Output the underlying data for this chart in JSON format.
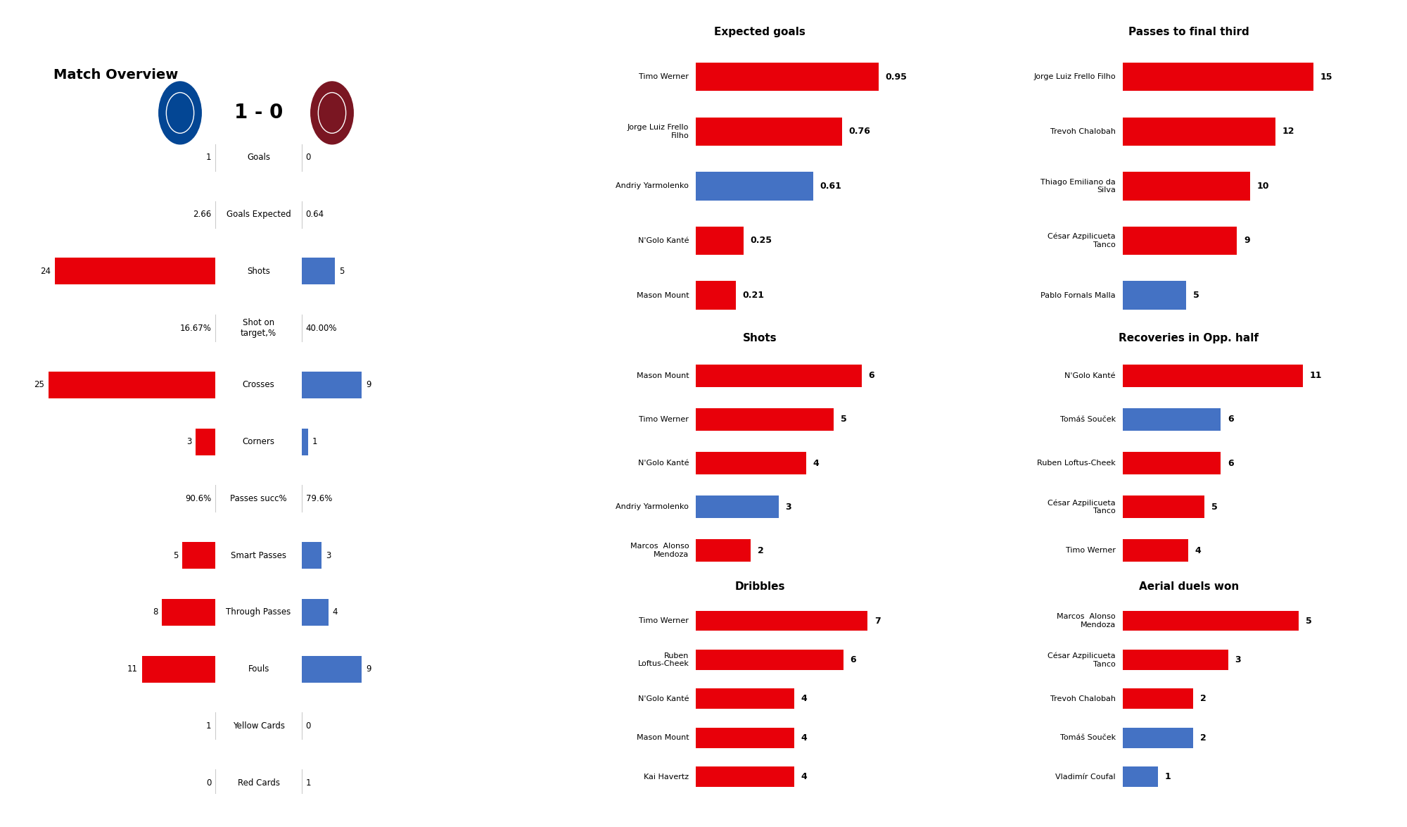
{
  "title": "Match Overview",
  "score": "1 - 0",
  "chelsea_color": "#e8000a",
  "westham_color": "#4472c4",
  "overview_stats": [
    {
      "label": "Goals",
      "chelsea_val": "1",
      "westham_val": "0",
      "chelsea_num": 1,
      "westham_num": 0,
      "type": "number"
    },
    {
      "label": "Goals Expected",
      "chelsea_val": "2.66",
      "westham_val": "0.64",
      "chelsea_num": 2.66,
      "westham_num": 0.64,
      "type": "number"
    },
    {
      "label": "Shots",
      "chelsea_val": "24",
      "westham_val": "5",
      "chelsea_num": 24,
      "westham_num": 5,
      "type": "bar"
    },
    {
      "label": "Shot on\ntarget,%",
      "chelsea_val": "16.67%",
      "westham_val": "40.00%",
      "chelsea_num": 0,
      "westham_num": 0,
      "type": "percent"
    },
    {
      "label": "Crosses",
      "chelsea_val": "25",
      "westham_val": "9",
      "chelsea_num": 25,
      "westham_num": 9,
      "type": "bar"
    },
    {
      "label": "Corners",
      "chelsea_val": "3",
      "westham_val": "1",
      "chelsea_num": 3,
      "westham_num": 1,
      "type": "bar"
    },
    {
      "label": "Passes succ%",
      "chelsea_val": "90.6%",
      "westham_val": "79.6%",
      "chelsea_num": 0,
      "westham_num": 0,
      "type": "percent"
    },
    {
      "label": "Smart Passes",
      "chelsea_val": "5",
      "westham_val": "3",
      "chelsea_num": 5,
      "westham_num": 3,
      "type": "bar"
    },
    {
      "label": "Through Passes",
      "chelsea_val": "8",
      "westham_val": "4",
      "chelsea_num": 8,
      "westham_num": 4,
      "type": "bar"
    },
    {
      "label": "Fouls",
      "chelsea_val": "11",
      "westham_val": "9",
      "chelsea_num": 11,
      "westham_num": 9,
      "type": "bar"
    },
    {
      "label": "Yellow Cards",
      "chelsea_val": "1",
      "westham_val": "0",
      "chelsea_num": 1,
      "westham_num": 0,
      "type": "number"
    },
    {
      "label": "Red Cards",
      "chelsea_val": "0",
      "westham_val": "1",
      "chelsea_num": 0,
      "westham_num": 1,
      "type": "number"
    }
  ],
  "expected_goals": {
    "title": "Expected goals",
    "players": [
      "Timo Werner",
      "Jorge Luiz Frello\nFilho",
      "Andriy Yarmolenko",
      "N'Golo Kanté",
      "Mason Mount"
    ],
    "values": [
      0.95,
      0.76,
      0.61,
      0.25,
      0.21
    ],
    "colors": [
      "#e8000a",
      "#e8000a",
      "#4472c4",
      "#e8000a",
      "#e8000a"
    ]
  },
  "shots": {
    "title": "Shots",
    "players": [
      "Mason Mount",
      "Timo Werner",
      "N'Golo Kanté",
      "Andriy Yarmolenko",
      "Marcos  Alonso\nMendoza"
    ],
    "values": [
      6,
      5,
      4,
      3,
      2
    ],
    "colors": [
      "#e8000a",
      "#e8000a",
      "#e8000a",
      "#4472c4",
      "#e8000a"
    ]
  },
  "dribbles": {
    "title": "Dribbles",
    "players": [
      "Timo Werner",
      "Ruben\nLoftus-Cheek",
      "N'Golo Kanté",
      "Mason Mount",
      "Kai Havertz"
    ],
    "values": [
      7,
      6,
      4,
      4,
      4
    ],
    "colors": [
      "#e8000a",
      "#e8000a",
      "#e8000a",
      "#e8000a",
      "#e8000a"
    ]
  },
  "passes_final_third": {
    "title": "Passes to final third",
    "players": [
      "Jorge Luiz Frello Filho",
      "Trevoh Chalobah",
      "Thiago Emiliano da\nSilva",
      "César Azpilicueta\nTanco",
      "Pablo Fornals Malla"
    ],
    "values": [
      15,
      12,
      10,
      9,
      5
    ],
    "colors": [
      "#e8000a",
      "#e8000a",
      "#e8000a",
      "#e8000a",
      "#4472c4"
    ]
  },
  "recoveries_opp_half": {
    "title": "Recoveries in Opp. half",
    "players": [
      "N'Golo Kanté",
      "Tomáš Souček",
      "Ruben Loftus-Cheek",
      "César Azpilicueta\nTanco",
      "Timo Werner"
    ],
    "values": [
      11,
      6,
      6,
      5,
      4
    ],
    "colors": [
      "#e8000a",
      "#4472c4",
      "#e8000a",
      "#e8000a",
      "#e8000a"
    ]
  },
  "aerial_duels": {
    "title": "Aerial duels won",
    "players": [
      "Marcos  Alonso\nMendoza",
      "César Azpilicueta\nTanco",
      "Trevoh Chalobah",
      "Tomáš Souček",
      "Vladimír Coufal"
    ],
    "values": [
      5,
      3,
      2,
      2,
      1
    ],
    "colors": [
      "#e8000a",
      "#e8000a",
      "#e8000a",
      "#4472c4",
      "#4472c4"
    ]
  }
}
